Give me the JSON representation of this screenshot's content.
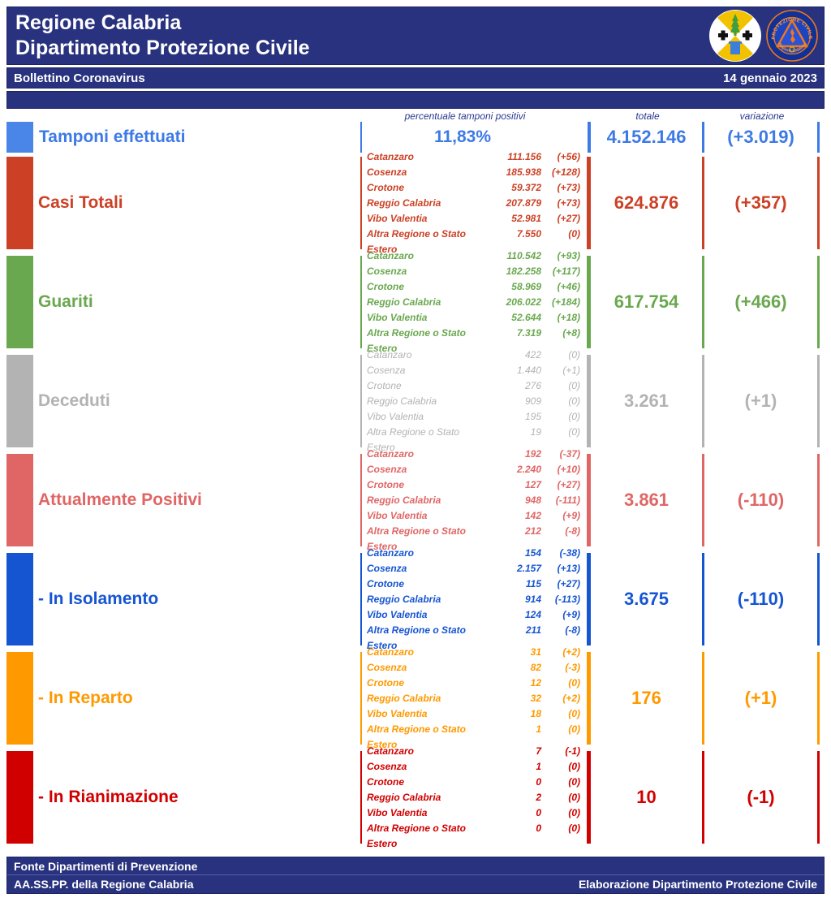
{
  "header": {
    "title_line1": "Regione Calabria",
    "title_line2": "Dipartimento Protezione Civile",
    "strip_label": "Bollettino Coronavirus",
    "strip_date": "14 gennaio 2023",
    "navy_color": "#28327e",
    "logo1_name": "regione-calabria-logo",
    "logo2_name": "protezione-civile-logo",
    "logo2_text_top": "PROTEZIONE CIVILE",
    "logo2_text_bottom": "Regione Calabria"
  },
  "columns": {
    "col1": "percentuale tamponi positivi",
    "col2": "totale",
    "col3": "variazione"
  },
  "tamponi": {
    "label": "Tamponi effettuati",
    "percent": "11,83%",
    "total": "4.152.146",
    "change": "(+3.019)",
    "color": "#4a86e8"
  },
  "sections": [
    {
      "id": "casi-totali",
      "label": "Casi Totali",
      "color": "#cc4125",
      "light": false,
      "total": "624.876",
      "change": "(+357)",
      "rows": [
        {
          "name": "Catanzaro",
          "value": "111.156",
          "change": "(+56)"
        },
        {
          "name": "Cosenza",
          "value": "185.938",
          "change": "(+128)"
        },
        {
          "name": "Crotone",
          "value": "59.372",
          "change": "(+73)"
        },
        {
          "name": "Reggio Calabria",
          "value": "207.879",
          "change": "(+73)"
        },
        {
          "name": "Vibo Valentia",
          "value": "52.981",
          "change": "(+27)"
        },
        {
          "name": "Altra Regione o Stato Estero",
          "value": "7.550",
          "change": "(0)"
        }
      ]
    },
    {
      "id": "guariti",
      "label": "Guariti",
      "color": "#6aa84f",
      "light": false,
      "total": "617.754",
      "change": "(+466)",
      "rows": [
        {
          "name": "Catanzaro",
          "value": "110.542",
          "change": "(+93)"
        },
        {
          "name": "Cosenza",
          "value": "182.258",
          "change": "(+117)"
        },
        {
          "name": "Crotone",
          "value": "58.969",
          "change": "(+46)"
        },
        {
          "name": "Reggio Calabria",
          "value": "206.022",
          "change": "(+184)"
        },
        {
          "name": "Vibo Valentia",
          "value": "52.644",
          "change": "(+18)"
        },
        {
          "name": "Altra Regione o Stato Estero",
          "value": "7.319",
          "change": "(+8)"
        }
      ]
    },
    {
      "id": "deceduti",
      "label": "Deceduti",
      "color": "#b3b3b3",
      "light": true,
      "total": "3.261",
      "change": "(+1)",
      "rows": [
        {
          "name": "Catanzaro",
          "value": "422",
          "change": "(0)"
        },
        {
          "name": "Cosenza",
          "value": "1.440",
          "change": "(+1)"
        },
        {
          "name": "Crotone",
          "value": "276",
          "change": "(0)"
        },
        {
          "name": "Reggio Calabria",
          "value": "909",
          "change": "(0)"
        },
        {
          "name": "Vibo Valentia",
          "value": "195",
          "change": "(0)"
        },
        {
          "name": "Altra Regione o Stato Estero",
          "value": "19",
          "change": "(0)"
        }
      ]
    },
    {
      "id": "attualmente-positivi",
      "label": "Attualmente Positivi",
      "color": "#e06666",
      "light": false,
      "total": "3.861",
      "change": "(-110)",
      "rows": [
        {
          "name": "Catanzaro",
          "value": "192",
          "change": "(-37)"
        },
        {
          "name": "Cosenza",
          "value": "2.240",
          "change": "(+10)"
        },
        {
          "name": "Crotone",
          "value": "127",
          "change": "(+27)"
        },
        {
          "name": "Reggio Calabria",
          "value": "948",
          "change": "(-111)"
        },
        {
          "name": "Vibo Valentia",
          "value": "142",
          "change": "(+9)"
        },
        {
          "name": "Altra Regione o Stato Estero",
          "value": "212",
          "change": "(-8)"
        }
      ]
    },
    {
      "id": "in-isolamento",
      "label": "- In Isolamento",
      "color": "#1655d2",
      "light": false,
      "total": "3.675",
      "change": "(-110)",
      "rows": [
        {
          "name": "Catanzaro",
          "value": "154",
          "change": "(-38)"
        },
        {
          "name": "Cosenza",
          "value": "2.157",
          "change": "(+13)"
        },
        {
          "name": "Crotone",
          "value": "115",
          "change": "(+27)"
        },
        {
          "name": "Reggio Calabria",
          "value": "914",
          "change": "(-113)"
        },
        {
          "name": "Vibo Valentia",
          "value": "124",
          "change": "(+9)"
        },
        {
          "name": "Altra Regione o Stato Estero",
          "value": "211",
          "change": "(-8)"
        }
      ]
    },
    {
      "id": "in-reparto",
      "label": "- In Reparto",
      "color": "#ff9900",
      "light": false,
      "total": "176",
      "change": "(+1)",
      "rows": [
        {
          "name": "Catanzaro",
          "value": "31",
          "change": "(+2)"
        },
        {
          "name": "Cosenza",
          "value": "82",
          "change": "(-3)"
        },
        {
          "name": "Crotone",
          "value": "12",
          "change": "(0)"
        },
        {
          "name": "Reggio Calabria",
          "value": "32",
          "change": "(+2)"
        },
        {
          "name": "Vibo Valentia",
          "value": "18",
          "change": "(0)"
        },
        {
          "name": "Altra Regione o Stato Estero",
          "value": "1",
          "change": "(0)"
        }
      ]
    },
    {
      "id": "in-rianimazione",
      "label": "- In Rianimazione",
      "color": "#d10000",
      "light": false,
      "total": "10",
      "change": "(-1)",
      "rows": [
        {
          "name": "Catanzaro",
          "value": "7",
          "change": "(-1)"
        },
        {
          "name": "Cosenza",
          "value": "1",
          "change": "(0)"
        },
        {
          "name": "Crotone",
          "value": "0",
          "change": "(0)"
        },
        {
          "name": "Reggio Calabria",
          "value": "2",
          "change": "(0)"
        },
        {
          "name": "Vibo Valentia",
          "value": "0",
          "change": "(0)"
        },
        {
          "name": "Altra Regione o Stato Estero",
          "value": "0",
          "change": "(0)"
        }
      ]
    }
  ],
  "footer": {
    "line1": "Fonte Dipartimenti di Prevenzione",
    "line2_left": "AA.SS.PP.  della Regione Calabria",
    "line2_right": "Elaborazione Dipartimento Protezione Civile"
  }
}
